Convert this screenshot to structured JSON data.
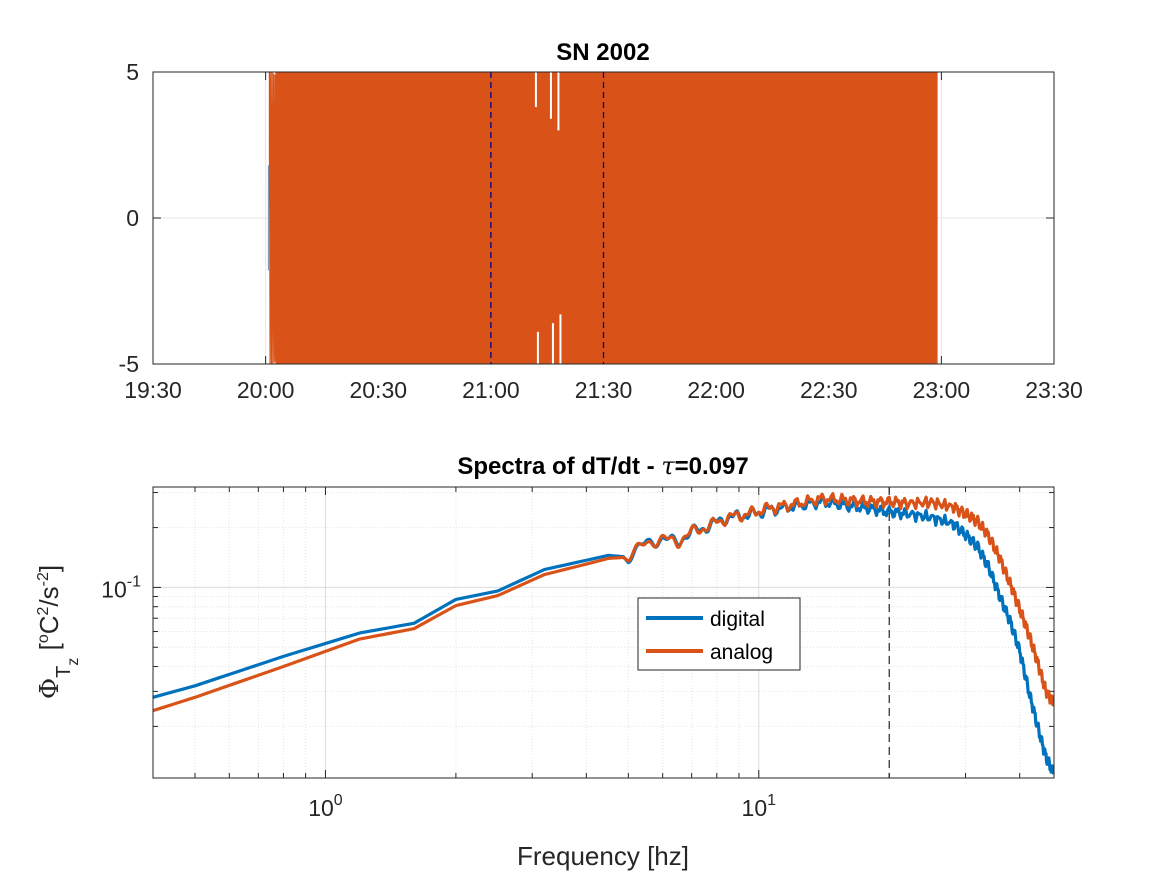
{
  "chart_data": [
    {
      "type": "line",
      "title": "SN 2002",
      "xlabel": "",
      "ylabel": "",
      "xlim": [
        "19:30",
        "23:30"
      ],
      "ylim": [
        -5,
        5
      ],
      "x_ticks": [
        "19:30",
        "20:00",
        "20:30",
        "21:00",
        "21:30",
        "22:00",
        "22:30",
        "23:00",
        "23:30"
      ],
      "y_ticks": [
        "-5",
        "0",
        "5"
      ],
      "grid": true,
      "signal": {
        "start": "20:01",
        "end": "22:59",
        "amplitude_clipped": 5,
        "color": "#D95319"
      },
      "markers": [
        {
          "x": "21:00",
          "style": "dashed",
          "color": "#00008B"
        },
        {
          "x": "21:30",
          "style": "dashed",
          "color": "#00008B"
        }
      ]
    },
    {
      "type": "line",
      "title": "Spectra of dT/dt - ",
      "title_symbol": "τ",
      "title_value": "=0.097",
      "xlabel": "Frequency [hz]",
      "ylabel": "Φ_Tz [°C²/s⁻²]",
      "x_scale": "log",
      "y_scale": "log",
      "xlim": [
        0.4,
        48
      ],
      "ylim": [
        0.011,
        0.32
      ],
      "x_ticks": [
        {
          "base": "10",
          "exp": "0",
          "value": 1
        },
        {
          "base": "10",
          "exp": "1",
          "value": 10
        }
      ],
      "y_ticks": [
        {
          "base": "10",
          "exp": "-1",
          "value": 0.1
        }
      ],
      "grid": true,
      "legend_position": "center",
      "vline": {
        "x": 20,
        "style": "dashed",
        "color": "#262626"
      },
      "series": [
        {
          "name": "digital",
          "color": "#0072BD",
          "points": [
            [
              0.4,
              0.028
            ],
            [
              0.5,
              0.032
            ],
            [
              0.8,
              0.045
            ],
            [
              1.2,
              0.059
            ],
            [
              1.6,
              0.066
            ],
            [
              2.0,
              0.087
            ],
            [
              2.5,
              0.096
            ],
            [
              3.2,
              0.123
            ],
            [
              4.0,
              0.137
            ],
            [
              4.5,
              0.145
            ],
            [
              5.0,
              0.142
            ],
            [
              5.5,
              0.168
            ],
            [
              6.0,
              0.175
            ],
            [
              6.5,
              0.17
            ],
            [
              7.0,
              0.19
            ],
            [
              7.5,
              0.2
            ],
            [
              8.5,
              0.225
            ],
            [
              9.5,
              0.232
            ],
            [
              10.5,
              0.245
            ],
            [
              12,
              0.255
            ],
            [
              14,
              0.27
            ],
            [
              16,
              0.258
            ],
            [
              18,
              0.25
            ],
            [
              20,
              0.24
            ],
            [
              22,
              0.235
            ],
            [
              25,
              0.225
            ],
            [
              28,
              0.21
            ],
            [
              30,
              0.185
            ],
            [
              32,
              0.16
            ],
            [
              34,
              0.125
            ],
            [
              36,
              0.09
            ],
            [
              38,
              0.068
            ],
            [
              40,
              0.048
            ],
            [
              42,
              0.03
            ],
            [
              44,
              0.02
            ],
            [
              46,
              0.014
            ],
            [
              48,
              0.0115
            ]
          ]
        },
        {
          "name": "analog",
          "color": "#D95319",
          "points": [
            [
              0.4,
              0.024
            ],
            [
              0.5,
              0.028
            ],
            [
              0.8,
              0.04
            ],
            [
              1.2,
              0.055
            ],
            [
              1.6,
              0.062
            ],
            [
              2.0,
              0.081
            ],
            [
              2.5,
              0.091
            ],
            [
              3.2,
              0.116
            ],
            [
              4.0,
              0.131
            ],
            [
              4.5,
              0.14
            ],
            [
              5.0,
              0.142
            ],
            [
              5.5,
              0.168
            ],
            [
              6.0,
              0.175
            ],
            [
              6.5,
              0.17
            ],
            [
              7.0,
              0.19
            ],
            [
              7.5,
              0.2
            ],
            [
              8.5,
              0.225
            ],
            [
              9.5,
              0.235
            ],
            [
              10.5,
              0.25
            ],
            [
              12,
              0.262
            ],
            [
              14,
              0.28
            ],
            [
              16,
              0.275
            ],
            [
              18,
              0.27
            ],
            [
              20,
              0.27
            ],
            [
              22,
              0.265
            ],
            [
              25,
              0.268
            ],
            [
              28,
              0.255
            ],
            [
              30,
              0.235
            ],
            [
              32,
              0.215
            ],
            [
              34,
              0.18
            ],
            [
              36,
              0.14
            ],
            [
              38,
              0.105
            ],
            [
              40,
              0.078
            ],
            [
              42,
              0.058
            ],
            [
              44,
              0.042
            ],
            [
              46,
              0.03
            ],
            [
              48,
              0.026
            ]
          ]
        }
      ]
    }
  ]
}
